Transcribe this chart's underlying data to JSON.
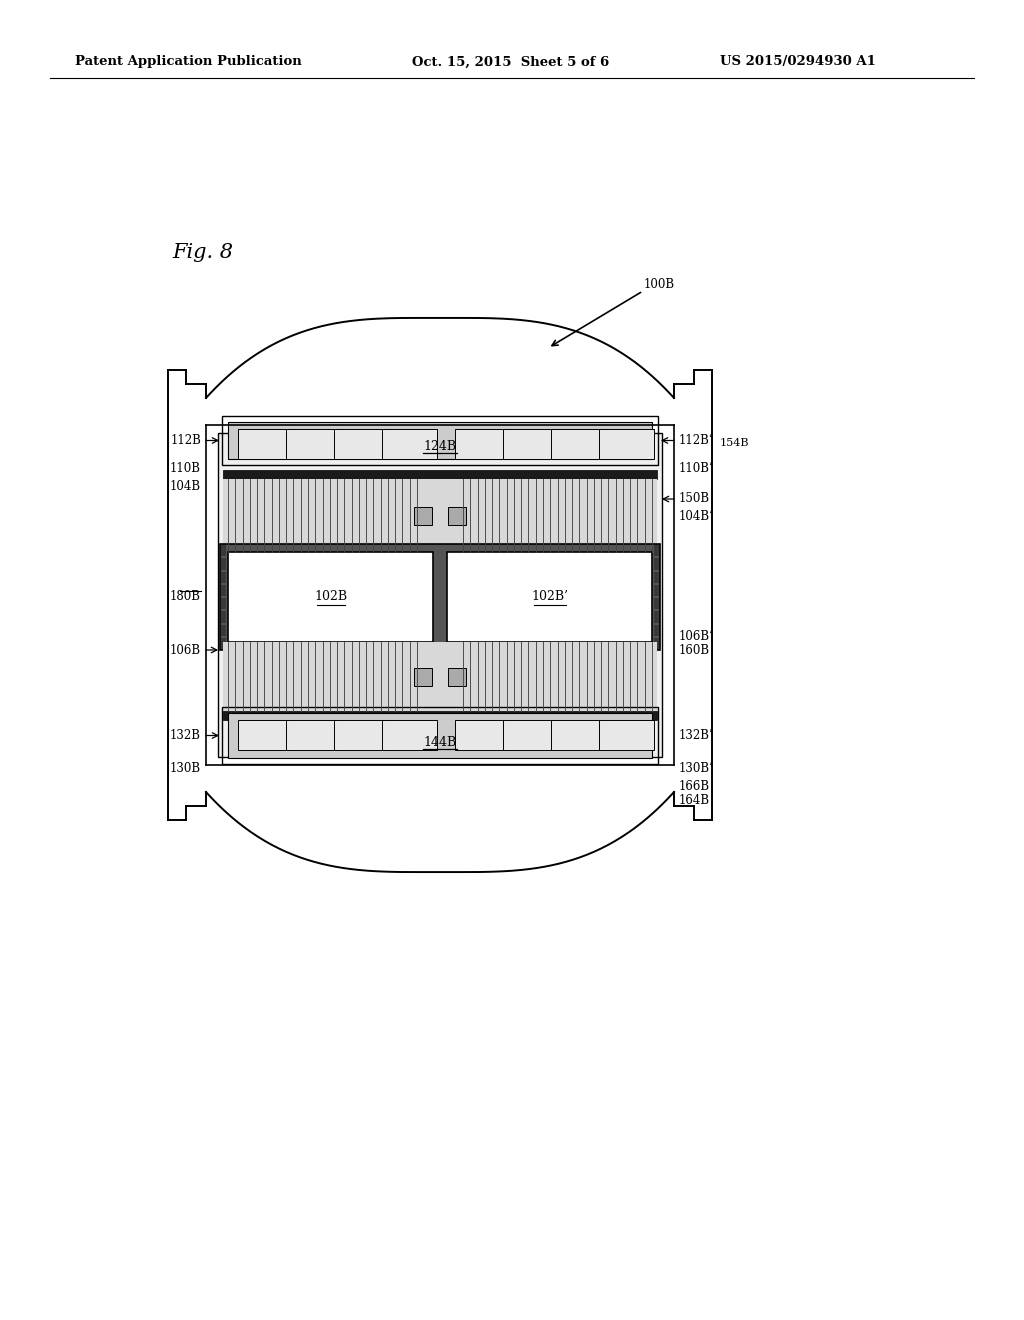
{
  "bg_color": "#ffffff",
  "header_left": "Patent Application Publication",
  "header_center": "Oct. 15, 2015  Sheet 5 of 6",
  "header_right": "US 2015/0294930 A1",
  "fig_label": "Fig. 8",
  "ref_100B": "100B",
  "ref_124B": "124B",
  "ref_154B": "154B",
  "ref_144B": "144B",
  "ref_102B": "102B",
  "ref_102Bp": "102B’",
  "ref_112B": "112B",
  "ref_112Bp": "112B’",
  "ref_110B": "110B",
  "ref_110Bp": "110B’",
  "ref_104B": "104B",
  "ref_104Bp": "104B’",
  "ref_106B": "106B",
  "ref_106Bp": "106B’",
  "ref_150B": "150B",
  "ref_160B": "160B",
  "ref_132B": "132B",
  "ref_132Bp": "132B’",
  "ref_130B": "130B",
  "ref_130Bp": "130B’",
  "ref_180B": "180B",
  "ref_166B": "166B",
  "ref_164B": "164B"
}
